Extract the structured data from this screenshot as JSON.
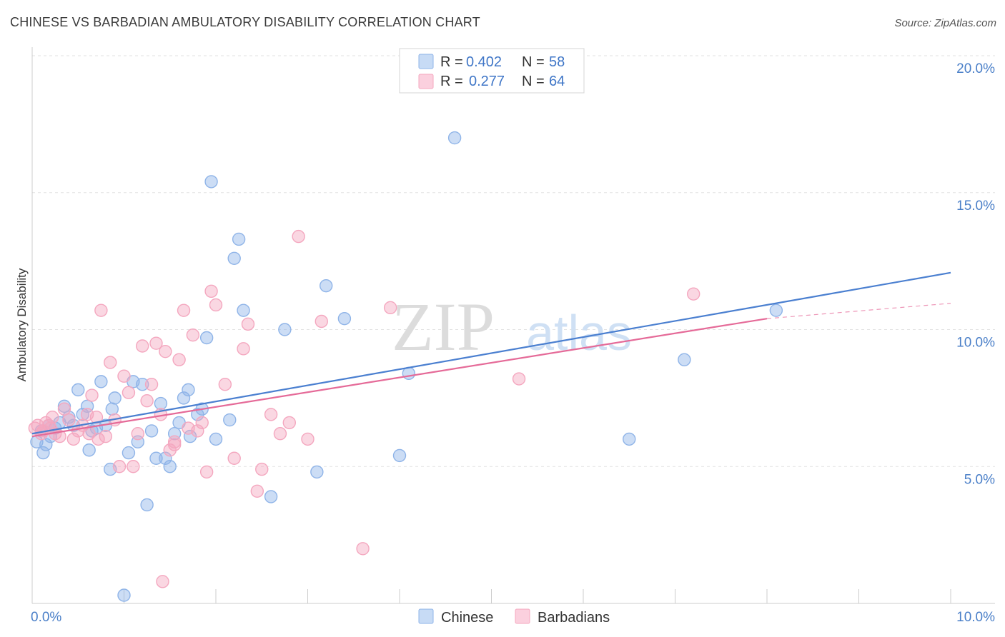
{
  "header": {
    "title": "CHINESE VS BARBADIAN AMBULATORY DISABILITY CORRELATION CHART",
    "source": "Source: ZipAtlas.com"
  },
  "watermark": {
    "zip": "ZIP",
    "atlas": "atlas"
  },
  "legend_top": [
    {
      "r_label": "R =",
      "r_value": "0.402",
      "n_label": "N =",
      "n_value": "58",
      "color": "#8fb4e8"
    },
    {
      "r_label": "R =",
      "r_value": "0.277",
      "n_label": "N =",
      "n_value": "64",
      "color": "#f4a7bf"
    }
  ],
  "legend_bottom": [
    {
      "label": "Chinese",
      "color": "#8fb4e8"
    },
    {
      "label": "Barbadians",
      "color": "#f4a7bf"
    }
  ],
  "chart_data": {
    "type": "scatter",
    "title": "CHINESE VS BARBADIAN AMBULATORY DISABILITY CORRELATION CHART",
    "ylabel": "Ambulatory Disability",
    "xlabel": "",
    "xlim": [
      0,
      10
    ],
    "ylim": [
      0,
      20
    ],
    "x_tick_labels": [
      "0.0%",
      "10.0%"
    ],
    "y_ticks": [
      5,
      10,
      15,
      20
    ],
    "y_tick_labels": [
      "5.0%",
      "10.0%",
      "15.0%",
      "20.0%"
    ],
    "grid": true,
    "series": [
      {
        "name": "Chinese",
        "color": "#4a7fd0",
        "fill": "#8fb4e8",
        "r": 0.402,
        "n": 58,
        "trend": {
          "x0": 0.0,
          "y0": 6.2,
          "x1": 11.4,
          "y1": 12.9
        },
        "points": [
          [
            0.05,
            5.9
          ],
          [
            0.1,
            6.3
          ],
          [
            0.12,
            5.5
          ],
          [
            0.15,
            5.8
          ],
          [
            0.18,
            6.5
          ],
          [
            0.2,
            6.1
          ],
          [
            0.25,
            6.4
          ],
          [
            0.3,
            6.6
          ],
          [
            0.35,
            7.2
          ],
          [
            0.4,
            6.8
          ],
          [
            0.45,
            6.5
          ],
          [
            0.5,
            7.8
          ],
          [
            0.55,
            6.9
          ],
          [
            0.6,
            7.2
          ],
          [
            0.62,
            5.6
          ],
          [
            0.65,
            6.3
          ],
          [
            0.7,
            6.4
          ],
          [
            0.75,
            8.1
          ],
          [
            0.8,
            6.5
          ],
          [
            0.85,
            4.9
          ],
          [
            0.87,
            7.1
          ],
          [
            0.9,
            7.5
          ],
          [
            1.05,
            5.5
          ],
          [
            1.0,
            0.3
          ],
          [
            1.1,
            8.1
          ],
          [
            1.15,
            5.9
          ],
          [
            1.2,
            8.0
          ],
          [
            1.25,
            3.6
          ],
          [
            1.3,
            6.3
          ],
          [
            1.35,
            5.3
          ],
          [
            1.4,
            7.3
          ],
          [
            1.45,
            5.3
          ],
          [
            1.5,
            5.0
          ],
          [
            1.55,
            6.2
          ],
          [
            1.6,
            6.6
          ],
          [
            1.65,
            7.5
          ],
          [
            1.7,
            7.8
          ],
          [
            1.72,
            6.1
          ],
          [
            1.8,
            6.9
          ],
          [
            1.85,
            7.1
          ],
          [
            1.9,
            9.7
          ],
          [
            1.95,
            15.4
          ],
          [
            2.0,
            6.0
          ],
          [
            2.15,
            6.7
          ],
          [
            2.2,
            12.6
          ],
          [
            2.25,
            13.3
          ],
          [
            2.3,
            10.7
          ],
          [
            2.6,
            3.9
          ],
          [
            2.75,
            10.0
          ],
          [
            3.1,
            4.8
          ],
          [
            3.2,
            11.6
          ],
          [
            3.4,
            10.4
          ],
          [
            4.0,
            5.4
          ],
          [
            4.1,
            8.4
          ],
          [
            4.6,
            17.0
          ],
          [
            6.5,
            6.0
          ],
          [
            7.1,
            8.9
          ],
          [
            8.1,
            10.7
          ]
        ]
      },
      {
        "name": "Barbadians",
        "color": "#e56a98",
        "fill": "#f4a7bf",
        "r": 0.277,
        "n": 64,
        "trend": {
          "x0": 0.0,
          "y0": 6.1,
          "x1": 8.0,
          "y1": 10.4
        },
        "trend_dashed": {
          "x0": 8.0,
          "y0": 10.4,
          "x1": 11.4,
          "y1": 11.35
        },
        "points": [
          [
            0.03,
            6.4
          ],
          [
            0.06,
            6.5
          ],
          [
            0.1,
            6.2
          ],
          [
            0.12,
            6.3
          ],
          [
            0.15,
            6.6
          ],
          [
            0.18,
            6.5
          ],
          [
            0.2,
            6.4
          ],
          [
            0.22,
            6.8
          ],
          [
            0.25,
            6.2
          ],
          [
            0.3,
            6.1
          ],
          [
            0.35,
            7.1
          ],
          [
            0.4,
            6.7
          ],
          [
            0.45,
            6.0
          ],
          [
            0.5,
            6.3
          ],
          [
            0.55,
            6.5
          ],
          [
            0.6,
            6.9
          ],
          [
            0.62,
            6.2
          ],
          [
            0.65,
            7.6
          ],
          [
            0.7,
            6.8
          ],
          [
            0.72,
            6.0
          ],
          [
            0.75,
            10.7
          ],
          [
            0.8,
            6.1
          ],
          [
            0.85,
            8.8
          ],
          [
            0.9,
            6.7
          ],
          [
            0.95,
            5.0
          ],
          [
            1.0,
            8.3
          ],
          [
            1.05,
            7.7
          ],
          [
            1.1,
            5.0
          ],
          [
            1.15,
            6.2
          ],
          [
            1.2,
            9.4
          ],
          [
            1.25,
            7.4
          ],
          [
            1.3,
            8.0
          ],
          [
            1.35,
            9.5
          ],
          [
            1.4,
            6.9
          ],
          [
            1.45,
            9.2
          ],
          [
            1.5,
            5.6
          ],
          [
            1.55,
            5.8
          ],
          [
            1.6,
            8.9
          ],
          [
            1.65,
            10.7
          ],
          [
            1.7,
            6.4
          ],
          [
            1.75,
            9.8
          ],
          [
            1.8,
            6.3
          ],
          [
            1.85,
            6.6
          ],
          [
            1.9,
            4.8
          ],
          [
            1.95,
            11.4
          ],
          [
            2.0,
            10.9
          ],
          [
            2.1,
            8.0
          ],
          [
            2.2,
            5.3
          ],
          [
            2.3,
            9.3
          ],
          [
            2.35,
            10.2
          ],
          [
            2.45,
            4.1
          ],
          [
            2.5,
            4.9
          ],
          [
            2.6,
            6.9
          ],
          [
            2.7,
            6.2
          ],
          [
            2.8,
            6.6
          ],
          [
            2.9,
            13.4
          ],
          [
            3.0,
            6.0
          ],
          [
            3.15,
            10.3
          ],
          [
            3.6,
            2.0
          ],
          [
            3.9,
            10.8
          ],
          [
            5.3,
            8.2
          ],
          [
            7.2,
            11.3
          ],
          [
            1.42,
            0.8
          ],
          [
            1.55,
            5.9
          ]
        ]
      }
    ]
  }
}
